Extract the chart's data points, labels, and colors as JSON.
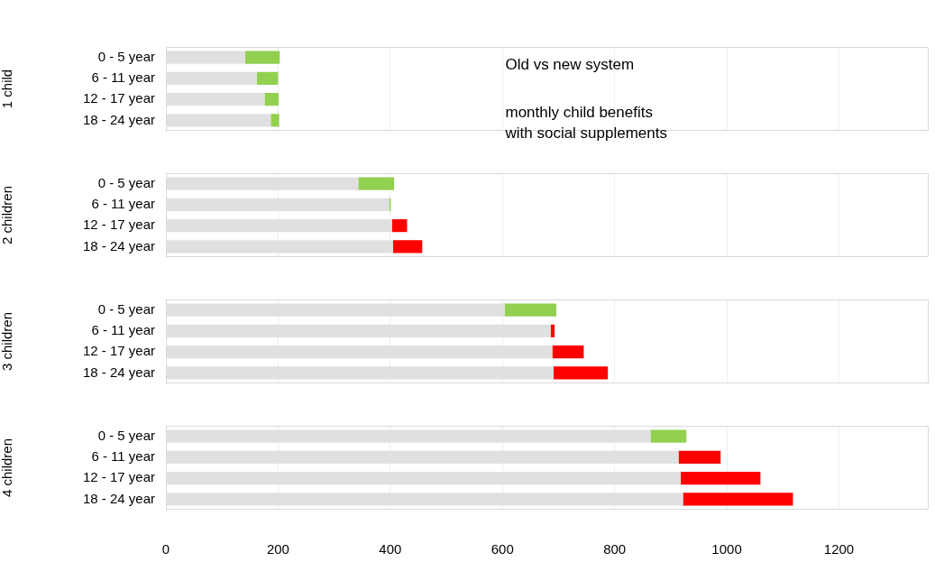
{
  "chart_data": [
    {
      "type": "bar",
      "orientation": "horizontal",
      "stacked": true,
      "title": "Old vs new system",
      "subtitle": "monthly child benefits with social supplements",
      "ylabel": "1 child",
      "categories": [
        "0 - 5 year",
        "6 - 11 year",
        "12 - 17 year",
        "18 - 24 year"
      ],
      "xlim": [
        0,
        1360
      ],
      "xticks": [
        0,
        200,
        400,
        600,
        800,
        1000,
        1200
      ],
      "grid": "x",
      "legend": false,
      "tick_labels": "y",
      "series": [
        {
          "color": "#e0e0e0",
          "values": [
            141,
            162,
            176,
            187
          ]
        },
        {
          "colors": [
            "#92d050",
            "#92d050",
            "#92d050",
            "#92d050"
          ],
          "values": [
            62,
            38,
            25,
            15
          ]
        }
      ]
    },
    {
      "type": "bar",
      "orientation": "horizontal",
      "stacked": true,
      "ylabel": "2 children",
      "categories": [
        "0 - 5 year",
        "6 - 11 year",
        "12 - 17 year",
        "18 - 24 year"
      ],
      "xlim": [
        0,
        1360
      ],
      "xticks": [
        0,
        200,
        400,
        600,
        800,
        1000,
        1200
      ],
      "grid": "x",
      "legend": false,
      "tick_labels": "y",
      "series": [
        {
          "color": "#e0e0e0",
          "values": [
            343,
            398,
            403,
            405
          ]
        },
        {
          "colors": [
            "#92d050",
            "#92d050",
            "#ff0000",
            "#ff0000"
          ],
          "values": [
            64,
            3,
            27,
            52
          ]
        }
      ]
    },
    {
      "type": "bar",
      "orientation": "horizontal",
      "stacked": true,
      "ylabel": "3 children",
      "categories": [
        "0 - 5 year",
        "6 - 11 year",
        "12 - 17 year",
        "18 - 24 year"
      ],
      "xlim": [
        0,
        1360
      ],
      "xticks": [
        0,
        200,
        400,
        600,
        800,
        1000,
        1200
      ],
      "grid": "x",
      "legend": false,
      "tick_labels": "y",
      "series": [
        {
          "color": "#e0e0e0",
          "values": [
            604,
            686,
            689,
            691
          ]
        },
        {
          "colors": [
            "#92d050",
            "#ff0000",
            "#ff0000",
            "#ff0000"
          ],
          "values": [
            92,
            7,
            56,
            97
          ]
        }
      ]
    },
    {
      "type": "bar",
      "orientation": "horizontal",
      "stacked": true,
      "ylabel": "4 children",
      "categories": [
        "0 - 5 year",
        "6 - 11 year",
        "12 - 17 year",
        "18 - 24 year"
      ],
      "xlim": [
        0,
        1360
      ],
      "xticks": [
        0,
        200,
        400,
        600,
        800,
        1000,
        1200
      ],
      "grid": "x",
      "legend": false,
      "series": [
        {
          "color": "#e0e0e0",
          "values": [
            864,
            914,
            918,
            922
          ]
        },
        {
          "colors": [
            "#92d050",
            "#ff0000",
            "#ff0000",
            "#ff0000"
          ],
          "values": [
            64,
            75,
            142,
            196
          ]
        }
      ]
    }
  ]
}
